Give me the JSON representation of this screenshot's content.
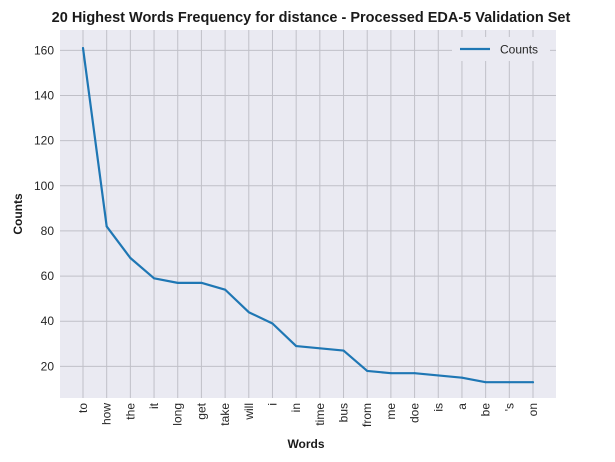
{
  "colors": {
    "series": "#1f77b4",
    "plot_background": "#eaeaf2",
    "grid": "#c0c0c8"
  },
  "chart_data": {
    "type": "line",
    "title": "20 Highest Words Frequency for distance - Processed EDA-5 Validation Set",
    "xlabel": "Words",
    "ylabel": "Counts",
    "categories": [
      "to",
      "how",
      "the",
      "it",
      "long",
      "get",
      "take",
      "will",
      "i",
      "in",
      "time",
      "bus",
      "from",
      "me",
      "doe",
      "is",
      "a",
      "be",
      "'s",
      "on"
    ],
    "series": [
      {
        "name": "Counts",
        "values": [
          161,
          82,
          68,
          59,
          57,
          57,
          54,
          44,
          39,
          29,
          28,
          27,
          18,
          17,
          17,
          16,
          15,
          13,
          13,
          13
        ]
      }
    ],
    "ylim": [
      6,
      169
    ],
    "yticks": [
      20,
      40,
      60,
      80,
      100,
      120,
      140,
      160
    ],
    "grid": true,
    "legend_position": "top-right"
  }
}
